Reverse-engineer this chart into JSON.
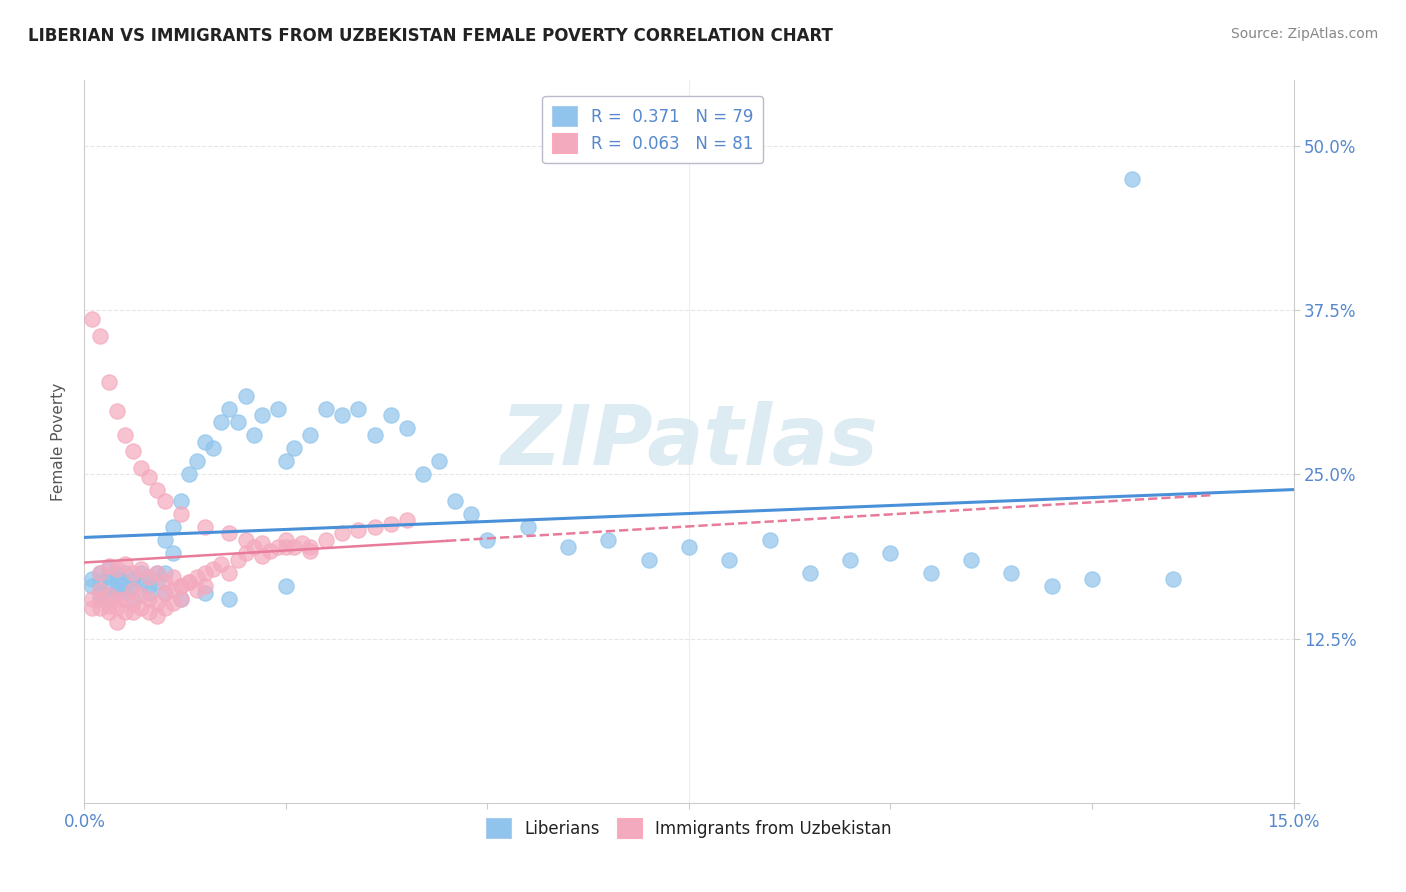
{
  "title": "LIBERIAN VS IMMIGRANTS FROM UZBEKISTAN FEMALE POVERTY CORRELATION CHART",
  "source": "Source: ZipAtlas.com",
  "ylabel": "Female Poverty",
  "xlim": [
    0.0,
    0.15
  ],
  "ylim": [
    0.0,
    0.55
  ],
  "yticks": [
    0.0,
    0.125,
    0.25,
    0.375,
    0.5
  ],
  "ytick_labels": [
    "",
    "12.5%",
    "25.0%",
    "37.5%",
    "50.0%"
  ],
  "legend1_R": "0.371",
  "legend1_N": "79",
  "legend2_R": "0.063",
  "legend2_N": "81",
  "blue_color": "#90C4EC",
  "pink_color": "#F4AABE",
  "line_blue": "#4A90D9",
  "line_pink": "#E87A9A",
  "grid_color": "#DDDDDD",
  "blue_scatter_x": [
    0.001,
    0.001,
    0.002,
    0.002,
    0.002,
    0.003,
    0.003,
    0.003,
    0.003,
    0.004,
    0.004,
    0.004,
    0.005,
    0.005,
    0.005,
    0.006,
    0.006,
    0.007,
    0.007,
    0.008,
    0.008,
    0.009,
    0.009,
    0.01,
    0.01,
    0.011,
    0.011,
    0.012,
    0.013,
    0.014,
    0.015,
    0.016,
    0.017,
    0.018,
    0.019,
    0.02,
    0.021,
    0.022,
    0.024,
    0.025,
    0.026,
    0.028,
    0.03,
    0.032,
    0.034,
    0.036,
    0.038,
    0.04,
    0.042,
    0.044,
    0.046,
    0.048,
    0.05,
    0.055,
    0.06,
    0.065,
    0.07,
    0.075,
    0.08,
    0.085,
    0.09,
    0.095,
    0.1,
    0.105,
    0.11,
    0.115,
    0.12,
    0.125,
    0.13,
    0.135,
    0.002,
    0.004,
    0.006,
    0.008,
    0.01,
    0.012,
    0.015,
    0.018,
    0.025
  ],
  "blue_scatter_y": [
    0.17,
    0.165,
    0.175,
    0.168,
    0.16,
    0.172,
    0.165,
    0.178,
    0.155,
    0.175,
    0.163,
    0.17,
    0.168,
    0.162,
    0.175,
    0.17,
    0.165,
    0.175,
    0.168,
    0.172,
    0.165,
    0.175,
    0.168,
    0.2,
    0.175,
    0.21,
    0.19,
    0.23,
    0.25,
    0.26,
    0.275,
    0.27,
    0.29,
    0.3,
    0.29,
    0.31,
    0.28,
    0.295,
    0.3,
    0.26,
    0.27,
    0.28,
    0.3,
    0.295,
    0.3,
    0.28,
    0.295,
    0.285,
    0.25,
    0.26,
    0.23,
    0.22,
    0.2,
    0.21,
    0.195,
    0.2,
    0.185,
    0.195,
    0.185,
    0.2,
    0.175,
    0.185,
    0.19,
    0.175,
    0.185,
    0.175,
    0.165,
    0.17,
    0.475,
    0.17,
    0.155,
    0.16,
    0.155,
    0.16,
    0.16,
    0.155,
    0.16,
    0.155,
    0.165
  ],
  "pink_scatter_x": [
    0.001,
    0.001,
    0.002,
    0.002,
    0.002,
    0.003,
    0.003,
    0.003,
    0.004,
    0.004,
    0.004,
    0.005,
    0.005,
    0.006,
    0.006,
    0.006,
    0.007,
    0.007,
    0.008,
    0.008,
    0.009,
    0.009,
    0.01,
    0.01,
    0.011,
    0.011,
    0.012,
    0.012,
    0.013,
    0.014,
    0.015,
    0.016,
    0.017,
    0.018,
    0.019,
    0.02,
    0.021,
    0.022,
    0.023,
    0.024,
    0.025,
    0.026,
    0.027,
    0.028,
    0.03,
    0.032,
    0.034,
    0.036,
    0.038,
    0.04,
    0.002,
    0.003,
    0.004,
    0.005,
    0.006,
    0.007,
    0.008,
    0.009,
    0.01,
    0.011,
    0.012,
    0.013,
    0.014,
    0.015,
    0.001,
    0.002,
    0.003,
    0.004,
    0.005,
    0.006,
    0.007,
    0.008,
    0.009,
    0.01,
    0.012,
    0.015,
    0.018,
    0.02,
    0.022,
    0.025,
    0.028
  ],
  "pink_scatter_y": [
    0.155,
    0.148,
    0.162,
    0.155,
    0.148,
    0.158,
    0.15,
    0.145,
    0.155,
    0.148,
    0.138,
    0.155,
    0.145,
    0.162,
    0.152,
    0.145,
    0.158,
    0.148,
    0.155,
    0.145,
    0.152,
    0.142,
    0.16,
    0.148,
    0.162,
    0.152,
    0.165,
    0.155,
    0.168,
    0.172,
    0.175,
    0.178,
    0.182,
    0.175,
    0.185,
    0.19,
    0.195,
    0.188,
    0.192,
    0.195,
    0.2,
    0.195,
    0.198,
    0.195,
    0.2,
    0.205,
    0.208,
    0.21,
    0.212,
    0.215,
    0.175,
    0.18,
    0.178,
    0.182,
    0.175,
    0.178,
    0.172,
    0.175,
    0.168,
    0.172,
    0.165,
    0.168,
    0.162,
    0.165,
    0.368,
    0.355,
    0.32,
    0.298,
    0.28,
    0.268,
    0.255,
    0.248,
    0.238,
    0.23,
    0.22,
    0.21,
    0.205,
    0.2,
    0.198,
    0.195,
    0.192
  ],
  "pink_line_solid_end": 0.045,
  "pink_line_dashed_end": 0.14
}
